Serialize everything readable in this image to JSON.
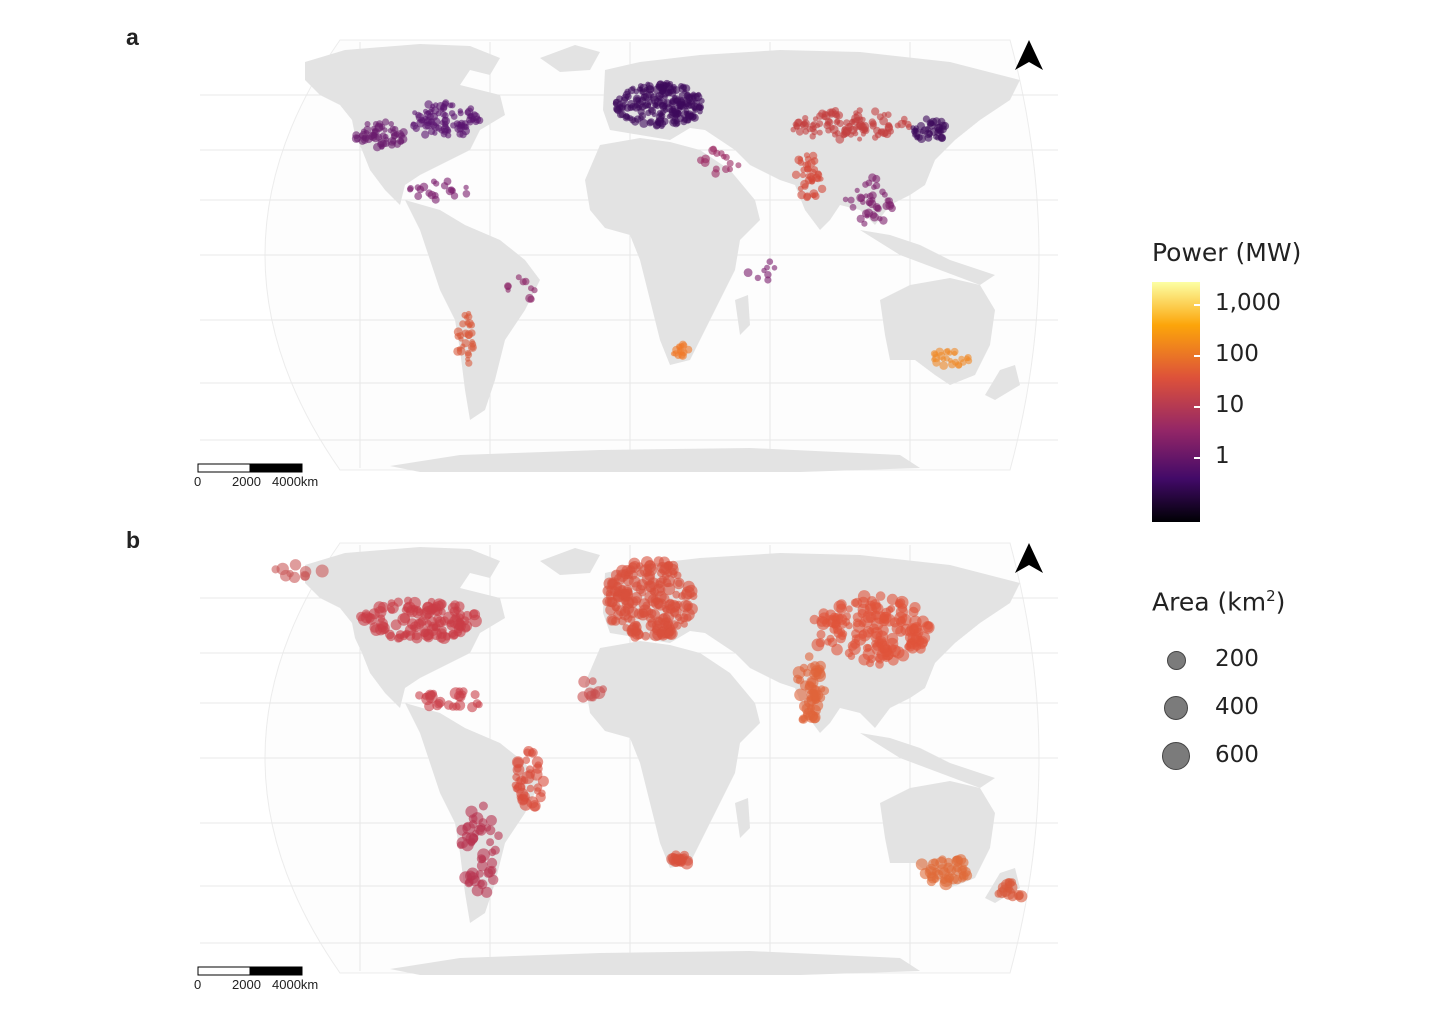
{
  "panels": [
    {
      "label": "a",
      "scale": {
        "zero": "0",
        "mid": "2000",
        "end": "4000km"
      }
    },
    {
      "label": "b",
      "scale": {
        "zero": "0",
        "mid": "2000",
        "end": "4000km"
      }
    }
  ],
  "legend": {
    "power_title": "Power (MW)",
    "power_ticks": [
      "1,000",
      "100",
      "10",
      "1"
    ],
    "area_title_prefix": "Area (km",
    "area_title_sup": "2",
    "area_title_suffix": ")",
    "area_sizes": [
      "200",
      "400",
      "600"
    ]
  },
  "colors": {
    "land": "#e3e3e3",
    "graticule": "#e8e8e8",
    "power_scale": [
      "#fcffa4",
      "#fca50a",
      "#dd513a",
      "#932667",
      "#420a68",
      "#000004"
    ]
  },
  "icons": {
    "north_arrow": "north-arrow-icon"
  }
}
